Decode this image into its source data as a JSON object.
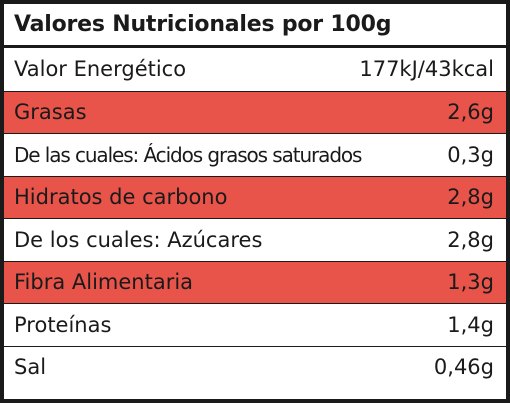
{
  "title": "Valores Nutricionales por 100g",
  "colors": {
    "highlight": "#e8544a",
    "border": "#1a1a1a",
    "text": "#1a1a1a"
  },
  "rows": [
    {
      "label": "Valor Energético",
      "value": "177kJ/43kcal",
      "highlight": false
    },
    {
      "label": "Grasas",
      "value": "2,6g",
      "highlight": true
    },
    {
      "label": "De las cuales: Ácidos grasos saturados",
      "value": "0,3g",
      "highlight": false
    },
    {
      "label": "Hidratos de carbono",
      "value": "2,8g",
      "highlight": true
    },
    {
      "label": "De los cuales: Azúcares",
      "value": "2,8g",
      "highlight": false
    },
    {
      "label": "Fibra Alimentaria",
      "value": "1,3g",
      "highlight": true
    },
    {
      "label": "Proteínas",
      "value": "1,4g",
      "highlight": false
    },
    {
      "label": "Sal",
      "value": "0,46g",
      "highlight": false
    }
  ]
}
